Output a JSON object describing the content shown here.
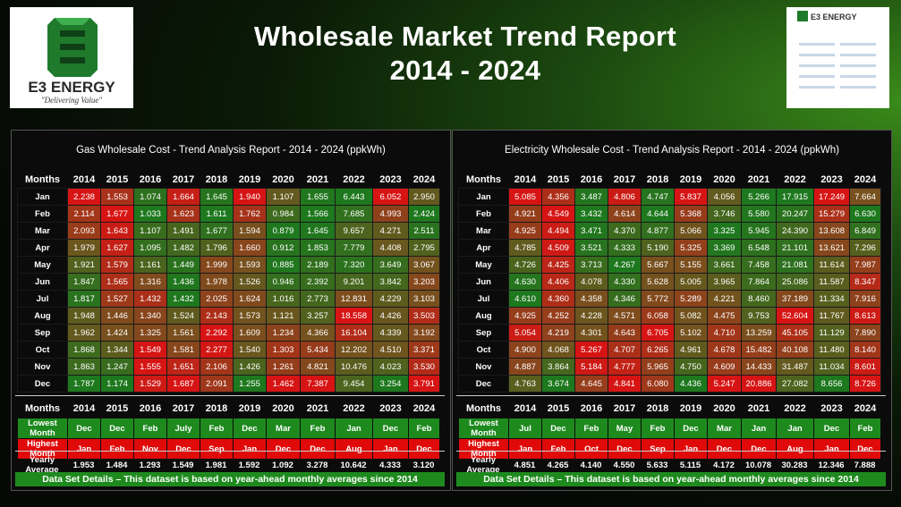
{
  "title_line1": "Wholesale Market Trend Report",
  "title_line2": "2014 - 2024",
  "logo": {
    "brand": "E3 ENERGY",
    "tagline": "\"Delivering Value\""
  },
  "colors": {
    "green": "#1e8a1e",
    "red": "#e00a0a"
  },
  "chart_data": [
    {
      "type": "table",
      "title": "Gas Wholesale Cost  - Trend Analysis Report - 2014 - 2024 (ppkWh)",
      "row_header": "Months",
      "columns": [
        "2014",
        "2015",
        "2016",
        "2017",
        "2018",
        "2019",
        "2020",
        "2021",
        "2022",
        "2023",
        "2024"
      ],
      "rows": [
        {
          "month": "Jan",
          "values": [
            2.238,
            1.553,
            1.074,
            1.664,
            1.645,
            1.94,
            1.107,
            1.655,
            6.443,
            6.052,
            2.95
          ]
        },
        {
          "month": "Feb",
          "values": [
            2.114,
            1.677,
            1.033,
            1.623,
            1.611,
            1.762,
            0.984,
            1.566,
            7.685,
            4.993,
            2.424
          ]
        },
        {
          "month": "Mar",
          "values": [
            2.093,
            1.643,
            1.107,
            1.491,
            1.677,
            1.594,
            0.879,
            1.645,
            9.657,
            4.271,
            2.511
          ]
        },
        {
          "month": "Apr",
          "values": [
            1.979,
            1.627,
            1.095,
            1.482,
            1.796,
            1.66,
            0.912,
            1.853,
            7.779,
            4.408,
            2.795
          ]
        },
        {
          "month": "May",
          "values": [
            1.921,
            1.579,
            1.161,
            1.449,
            1.999,
            1.593,
            0.885,
            2.189,
            7.32,
            3.649,
            3.067
          ]
        },
        {
          "month": "Jun",
          "values": [
            1.847,
            1.565,
            1.316,
            1.436,
            1.978,
            1.526,
            0.946,
            2.392,
            9.201,
            3.842,
            3.203
          ]
        },
        {
          "month": "Jul",
          "values": [
            1.817,
            1.527,
            1.432,
            1.432,
            2.025,
            1.624,
            1.016,
            2.773,
            12.831,
            4.229,
            3.103
          ]
        },
        {
          "month": "Aug",
          "values": [
            1.948,
            1.446,
            1.34,
            1.524,
            2.143,
            1.573,
            1.121,
            3.257,
            18.558,
            4.426,
            3.503
          ]
        },
        {
          "month": "Sep",
          "values": [
            1.962,
            1.424,
            1.325,
            1.561,
            2.292,
            1.609,
            1.234,
            4.366,
            16.104,
            4.339,
            3.192
          ]
        },
        {
          "month": "Oct",
          "values": [
            1.868,
            1.344,
            1.549,
            1.581,
            2.277,
            1.54,
            1.303,
            5.434,
            12.202,
            4.51,
            3.371
          ]
        },
        {
          "month": "Nov",
          "values": [
            1.863,
            1.247,
            1.555,
            1.651,
            2.106,
            1.426,
            1.261,
            4.821,
            10.476,
            4.023,
            3.53
          ]
        },
        {
          "month": "Dec",
          "values": [
            1.787,
            1.174,
            1.529,
            1.687,
            2.091,
            1.255,
            1.462,
            7.387,
            9.454,
            3.254,
            3.791
          ]
        }
      ],
      "lowest_label": "Lowest Month",
      "highest_label": "Highest Month",
      "lowest": [
        "Dec",
        "Dec",
        "Feb",
        "July",
        "Feb",
        "Dec",
        "Mar",
        "Feb",
        "Jan",
        "Dec",
        "Feb"
      ],
      "highest": [
        "Jan",
        "Feb",
        "Nov",
        "Dec",
        "Sep",
        "Jan",
        "Dec",
        "Dec",
        "Aug",
        "Jan",
        "Dec"
      ],
      "average_label": "Yearly Average",
      "average": [
        "1.953",
        "1.484",
        "1.293",
        "1.549",
        "1.981",
        "1.592",
        "1.092",
        "3.278",
        "10.642",
        "4.333",
        "3.120"
      ],
      "dataset_note": "Data Set Details – This dataset is based on year-ahead monthly averages since 2014"
    },
    {
      "type": "table",
      "title": "Electricity Wholesale Cost - Trend Analysis Report - 2014 - 2024 (ppkWh)",
      "row_header": "Months",
      "columns": [
        "2014",
        "2015",
        "2016",
        "2017",
        "2018",
        "2019",
        "2020",
        "2021",
        "2022",
        "2023",
        "2024"
      ],
      "rows": [
        {
          "month": "Jan",
          "values": [
            5.085,
            4.356,
            3.487,
            4.806,
            4.747,
            5.837,
            4.056,
            5.266,
            17.915,
            17.249,
            7.664
          ]
        },
        {
          "month": "Feb",
          "values": [
            4.921,
            4.549,
            3.432,
            4.614,
            4.644,
            5.368,
            3.746,
            5.58,
            20.247,
            15.279,
            6.63
          ]
        },
        {
          "month": "Mar",
          "values": [
            4.925,
            4.494,
            3.471,
            4.37,
            4.877,
            5.066,
            3.325,
            5.945,
            24.39,
            13.608,
            6.849
          ]
        },
        {
          "month": "Apr",
          "values": [
            4.785,
            4.509,
            3.521,
            4.333,
            5.19,
            5.325,
            3.369,
            6.548,
            21.101,
            13.621,
            7.296
          ]
        },
        {
          "month": "May",
          "values": [
            4.726,
            4.425,
            3.713,
            4.267,
            5.667,
            5.155,
            3.661,
            7.458,
            21.081,
            11.614,
            7.987
          ]
        },
        {
          "month": "Jun",
          "values": [
            4.63,
            4.406,
            4.078,
            4.33,
            5.628,
            5.005,
            3.965,
            7.864,
            25.086,
            11.587,
            8.347
          ]
        },
        {
          "month": "Jul",
          "values": [
            4.61,
            4.36,
            4.358,
            4.346,
            5.772,
            5.289,
            4.221,
            8.46,
            37.189,
            11.334,
            7.916
          ]
        },
        {
          "month": "Aug",
          "values": [
            4.925,
            4.252,
            4.228,
            4.571,
            6.058,
            5.082,
            4.475,
            9.753,
            52.604,
            11.767,
            8.613
          ]
        },
        {
          "month": "Sep",
          "values": [
            5.054,
            4.219,
            4.301,
            4.643,
            6.705,
            5.102,
            4.71,
            13.259,
            45.105,
            11.129,
            7.89
          ]
        },
        {
          "month": "Oct",
          "values": [
            4.9,
            4.068,
            5.267,
            4.707,
            6.265,
            4.961,
            4.678,
            15.482,
            40.108,
            11.48,
            8.14
          ]
        },
        {
          "month": "Nov",
          "values": [
            4.887,
            3.864,
            5.184,
            4.777,
            5.965,
            4.75,
            4.609,
            14.433,
            31.487,
            11.034,
            8.601
          ]
        },
        {
          "month": "Dec",
          "values": [
            4.763,
            3.674,
            4.645,
            4.841,
            6.08,
            4.436,
            5.247,
            20.886,
            27.082,
            8.656,
            8.726
          ]
        }
      ],
      "lowest_label": "Lowest Month",
      "highest_label": "Highest Month",
      "lowest": [
        "Jul",
        "Dec",
        "Feb",
        "May",
        "Feb",
        "Dec",
        "Mar",
        "Jan",
        "Jan",
        "Dec",
        "Feb"
      ],
      "highest": [
        "Jan",
        "Feb",
        "Oct",
        "Dec",
        "Sep",
        "Jan",
        "Dec",
        "Dec",
        "Aug",
        "Jan",
        "Dec"
      ],
      "average_label": "Yearly Average",
      "average": [
        "4.851",
        "4.265",
        "4.140",
        "4.550",
        "5.633",
        "5.115",
        "4.172",
        "10.078",
        "30.283",
        "12.346",
        "7.888"
      ],
      "dataset_note": "Data Set Details – This dataset is based on year-ahead monthly averages since 2014"
    }
  ]
}
